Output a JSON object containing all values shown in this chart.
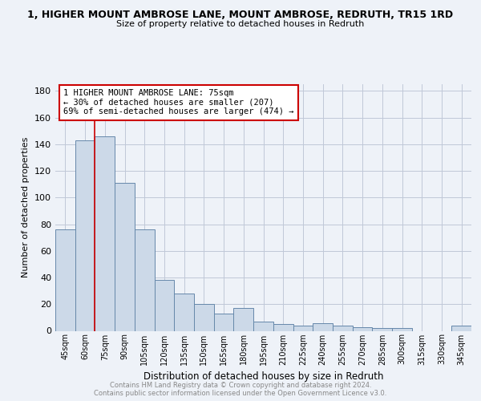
{
  "title": "1, HIGHER MOUNT AMBROSE LANE, MOUNT AMBROSE, REDRUTH, TR15 1RD",
  "subtitle": "Size of property relative to detached houses in Redruth",
  "xlabel": "Distribution of detached houses by size in Redruth",
  "ylabel": "Number of detached properties",
  "categories": [
    "45sqm",
    "60sqm",
    "75sqm",
    "90sqm",
    "105sqm",
    "120sqm",
    "135sqm",
    "150sqm",
    "165sqm",
    "180sqm",
    "195sqm",
    "210sqm",
    "225sqm",
    "240sqm",
    "255sqm",
    "270sqm",
    "285sqm",
    "300sqm",
    "315sqm",
    "330sqm",
    "345sqm"
  ],
  "values": [
    76,
    143,
    146,
    111,
    76,
    38,
    28,
    20,
    13,
    17,
    7,
    5,
    4,
    6,
    4,
    3,
    2,
    2,
    0,
    0,
    4
  ],
  "bar_color": "#ccd9e8",
  "bar_edge_color": "#6688aa",
  "highlight_bar_index": 2,
  "highlight_line_color": "#cc0000",
  "annotation_line1": "1 HIGHER MOUNT AMBROSE LANE: 75sqm",
  "annotation_line2": "← 30% of detached houses are smaller (207)",
  "annotation_line3": "69% of semi-detached houses are larger (474) →",
  "annotation_box_color": "#ffffff",
  "annotation_box_edge_color": "#cc0000",
  "ylim": [
    0,
    185
  ],
  "yticks": [
    0,
    20,
    40,
    60,
    80,
    100,
    120,
    140,
    160,
    180
  ],
  "footer_text": "Contains HM Land Registry data © Crown copyright and database right 2024.\nContains public sector information licensed under the Open Government Licence v3.0.",
  "background_color": "#eef2f8",
  "plot_background": "#eef2f8",
  "grid_color": "#c0c8d8"
}
